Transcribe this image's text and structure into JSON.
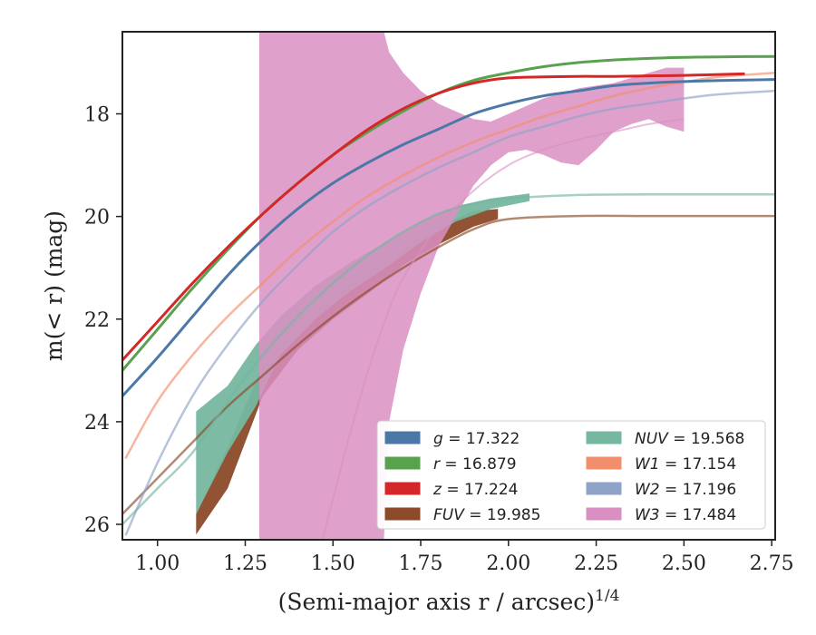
{
  "chart_data": {
    "type": "line",
    "xlabel": "(Semi-major axis r / arcsec)",
    "xlabel_exponent": "1/4",
    "ylabel": "m(< r) (mag)",
    "xlim": [
      0.9,
      2.76
    ],
    "ylim": [
      26.3,
      16.4
    ],
    "y_inverted": true,
    "grid": false,
    "legend_placement": "lower right",
    "x_ticks": [
      1.0,
      1.25,
      1.5,
      1.75,
      2.0,
      2.25,
      2.5,
      2.75
    ],
    "x_tick_labels": [
      "1.00",
      "1.25",
      "1.50",
      "1.75",
      "2.00",
      "2.25",
      "2.50",
      "2.75"
    ],
    "y_ticks": [
      18,
      20,
      22,
      24,
      26
    ],
    "y_tick_labels": [
      "18",
      "20",
      "22",
      "24",
      "26"
    ],
    "series": [
      {
        "name": "g",
        "legend_value": "17.322",
        "color": "#4c78a8",
        "style": "curve",
        "x": [
          0.9,
          1.0,
          1.1,
          1.2,
          1.3,
          1.4,
          1.5,
          1.6,
          1.7,
          1.8,
          1.9,
          2.0,
          2.1,
          2.2,
          2.3,
          2.4,
          2.5,
          2.6,
          2.76
        ],
        "y": [
          23.5,
          22.75,
          21.95,
          21.15,
          20.45,
          19.85,
          19.35,
          18.95,
          18.6,
          18.3,
          18.0,
          17.8,
          17.65,
          17.55,
          17.45,
          17.4,
          17.37,
          17.35,
          17.33
        ]
      },
      {
        "name": "r",
        "legend_value": "16.879",
        "color": "#59a14f",
        "style": "curve",
        "x": [
          0.9,
          1.0,
          1.1,
          1.2,
          1.3,
          1.4,
          1.5,
          1.6,
          1.7,
          1.8,
          1.9,
          2.0,
          2.1,
          2.2,
          2.3,
          2.4,
          2.5,
          2.6,
          2.76
        ],
        "y": [
          23.0,
          22.2,
          21.4,
          20.65,
          19.95,
          19.35,
          18.8,
          18.35,
          17.95,
          17.6,
          17.35,
          17.2,
          17.08,
          17.0,
          16.95,
          16.92,
          16.9,
          16.89,
          16.88
        ]
      },
      {
        "name": "z",
        "legend_value": "17.224",
        "color": "#d62728",
        "style": "curve",
        "x": [
          0.9,
          1.0,
          1.1,
          1.2,
          1.3,
          1.4,
          1.5,
          1.6,
          1.7,
          1.8,
          1.9,
          2.0,
          2.1,
          2.2,
          2.3,
          2.4,
          2.5,
          2.67
        ],
        "y": [
          22.8,
          22.05,
          21.3,
          20.6,
          19.95,
          19.35,
          18.8,
          18.3,
          17.9,
          17.6,
          17.4,
          17.3,
          17.28,
          17.27,
          17.27,
          17.26,
          17.25,
          17.22
        ]
      },
      {
        "name": "FUV",
        "legend_value": "19.985",
        "color": "#8c4a2a",
        "style": "band",
        "x": [
          1.11,
          1.2,
          1.3,
          1.4,
          1.5,
          1.6,
          1.7,
          1.8,
          1.9,
          1.97
        ],
        "y_lower": [
          26.2,
          25.3,
          23.5,
          22.6,
          22.0,
          21.5,
          20.95,
          20.55,
          20.2,
          20.05
        ],
        "y_upper": [
          25.8,
          24.5,
          22.9,
          22.0,
          21.5,
          21.1,
          20.6,
          20.2,
          19.9,
          19.85
        ],
        "extension": {
          "x": [
            0.9,
            1.0,
            1.1,
            1.2,
            1.3,
            1.4,
            1.5,
            1.6,
            1.7,
            1.8,
            1.9,
            2.0,
            2.2,
            2.4,
            2.6,
            2.76
          ],
          "y": [
            25.8,
            25.1,
            24.4,
            23.7,
            23.1,
            22.5,
            21.95,
            21.45,
            21.0,
            20.6,
            20.25,
            20.05,
            19.99,
            19.99,
            19.99,
            19.99
          ]
        }
      },
      {
        "name": "NUV",
        "legend_value": "19.568",
        "color": "#76b7a0",
        "style": "band",
        "x": [
          1.11,
          1.2,
          1.28,
          1.35,
          1.45,
          1.55,
          1.65,
          1.75,
          1.85,
          1.95,
          2.06
        ],
        "y_lower": [
          25.8,
          24.6,
          23.7,
          22.7,
          22.0,
          21.45,
          21.0,
          20.5,
          20.1,
          19.85,
          19.7
        ],
        "y_upper": [
          23.8,
          23.3,
          22.5,
          21.95,
          21.35,
          20.9,
          20.5,
          20.1,
          19.8,
          19.65,
          19.55
        ],
        "extension": {
          "x": [
            0.9,
            1.0,
            1.1,
            1.2,
            1.3,
            1.4,
            1.5,
            1.6,
            1.7,
            1.8,
            1.9,
            2.0,
            2.2,
            2.4,
            2.6,
            2.76
          ],
          "y": [
            26.0,
            25.3,
            24.6,
            23.6,
            22.7,
            21.95,
            21.3,
            20.75,
            20.3,
            19.95,
            19.75,
            19.65,
            19.58,
            19.57,
            19.57,
            19.57
          ]
        }
      },
      {
        "name": "W1",
        "legend_value": "17.154",
        "color": "#f28e6b",
        "style": "curve",
        "x": [
          0.91,
          1.0,
          1.1,
          1.2,
          1.3,
          1.4,
          1.5,
          1.6,
          1.7,
          1.8,
          1.9,
          2.0,
          2.1,
          2.2,
          2.3,
          2.4,
          2.5,
          2.6,
          2.76
        ],
        "y": [
          24.7,
          23.6,
          22.7,
          21.95,
          21.3,
          20.65,
          20.1,
          19.6,
          19.2,
          18.85,
          18.55,
          18.3,
          18.05,
          17.85,
          17.65,
          17.5,
          17.38,
          17.28,
          17.2
        ]
      },
      {
        "name": "W2",
        "legend_value": "17.196",
        "color": "#8fa3c8",
        "style": "curve",
        "x": [
          0.91,
          1.0,
          1.1,
          1.2,
          1.3,
          1.4,
          1.5,
          1.6,
          1.7,
          1.8,
          1.9,
          2.0,
          2.1,
          2.2,
          2.3,
          2.4,
          2.5,
          2.6,
          2.76
        ],
        "y": [
          26.2,
          24.8,
          23.5,
          22.5,
          21.65,
          20.95,
          20.3,
          19.8,
          19.4,
          19.05,
          18.75,
          18.45,
          18.25,
          18.05,
          17.9,
          17.8,
          17.7,
          17.62,
          17.55
        ]
      },
      {
        "name": "W3",
        "legend_value": "17.484",
        "color": "#d98fc2",
        "style": "band",
        "x": [
          1.29,
          1.645,
          1.66,
          1.7,
          1.75,
          1.8,
          1.85,
          1.9,
          1.95,
          2.0,
          2.05,
          2.1,
          2.15,
          2.2,
          2.25,
          2.3,
          2.35,
          2.4,
          2.45,
          2.5
        ],
        "y_lower": [
          26.3,
          26.3,
          24.0,
          22.6,
          21.5,
          20.6,
          20.0,
          19.4,
          19.0,
          18.75,
          18.7,
          18.8,
          18.95,
          19.0,
          18.7,
          18.35,
          18.2,
          18.1,
          18.25,
          18.35
        ],
        "y_upper": [
          16.4,
          16.4,
          16.8,
          17.2,
          17.55,
          17.8,
          17.95,
          18.1,
          18.15,
          18.0,
          17.85,
          17.7,
          17.6,
          17.5,
          17.45,
          17.4,
          17.3,
          17.2,
          17.1,
          17.1
        ],
        "steep_curve": {
          "x": [
            1.47,
            1.5,
            1.55,
            1.6,
            1.65,
            1.7,
            1.8,
            1.9,
            2.0,
            2.1,
            2.2,
            2.3,
            2.4,
            2.5
          ],
          "y": [
            26.3,
            25.5,
            24.2,
            23.0,
            22.0,
            21.2,
            20.2,
            19.5,
            19.0,
            18.7,
            18.5,
            18.35,
            18.2,
            18.1
          ]
        }
      }
    ],
    "legend": [
      {
        "symbol": "g",
        "value": "17.322",
        "color": "#4c78a8"
      },
      {
        "symbol": "r",
        "value": "16.879",
        "color": "#59a14f"
      },
      {
        "symbol": "z",
        "value": "17.224",
        "color": "#d62728"
      },
      {
        "symbol": "FUV",
        "value": "19.985",
        "color": "#8c4a2a"
      },
      {
        "symbol": "NUV",
        "value": "19.568",
        "color": "#76b7a0"
      },
      {
        "symbol": "W1",
        "value": "17.154",
        "color": "#f28e6b"
      },
      {
        "symbol": "W2",
        "value": "17.196",
        "color": "#8fa3c8"
      },
      {
        "symbol": "W3",
        "value": "17.484",
        "color": "#d98fc2"
      }
    ]
  }
}
